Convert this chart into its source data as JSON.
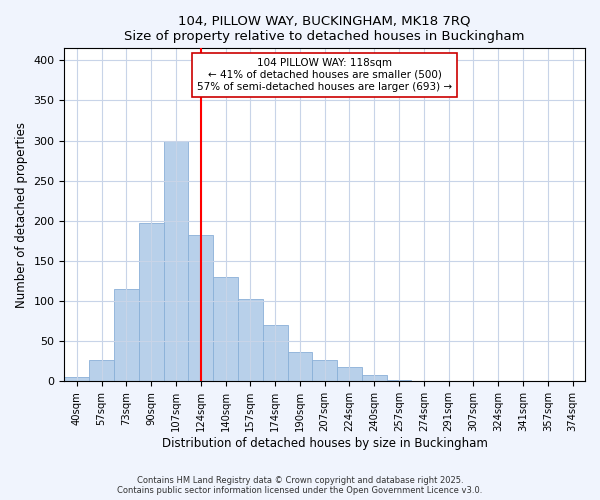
{
  "title_line1": "104, PILLOW WAY, BUCKINGHAM, MK18 7RQ",
  "title_line2": "Size of property relative to detached houses in Buckingham",
  "xlabel": "Distribution of detached houses by size in Buckingham",
  "ylabel": "Number of detached properties",
  "bar_labels": [
    "40sqm",
    "57sqm",
    "73sqm",
    "90sqm",
    "107sqm",
    "124sqm",
    "140sqm",
    "157sqm",
    "174sqm",
    "190sqm",
    "207sqm",
    "224sqm",
    "240sqm",
    "257sqm",
    "274sqm",
    "291sqm",
    "307sqm",
    "324sqm",
    "341sqm",
    "357sqm",
    "374sqm"
  ],
  "bar_values": [
    6,
    27,
    115,
    197,
    300,
    183,
    130,
    102,
    70,
    37,
    26,
    18,
    8,
    2,
    1,
    0,
    0,
    0,
    0,
    0,
    1
  ],
  "bar_color": "#b8d0ea",
  "bar_edge_color": "#8ab0d8",
  "vline_x_index": 5.0,
  "vline_color": "red",
  "annotation_text": "104 PILLOW WAY: 118sqm\n← 41% of detached houses are smaller (500)\n57% of semi-detached houses are larger (693) →",
  "ylim": [
    0,
    415
  ],
  "yticks": [
    0,
    50,
    100,
    150,
    200,
    250,
    300,
    350,
    400
  ],
  "footer_line1": "Contains HM Land Registry data © Crown copyright and database right 2025.",
  "footer_line2": "Contains public sector information licensed under the Open Government Licence v3.0.",
  "background_color": "#f0f4fd",
  "plot_bg_color": "#ffffff",
  "grid_color": "#c8d4e8"
}
